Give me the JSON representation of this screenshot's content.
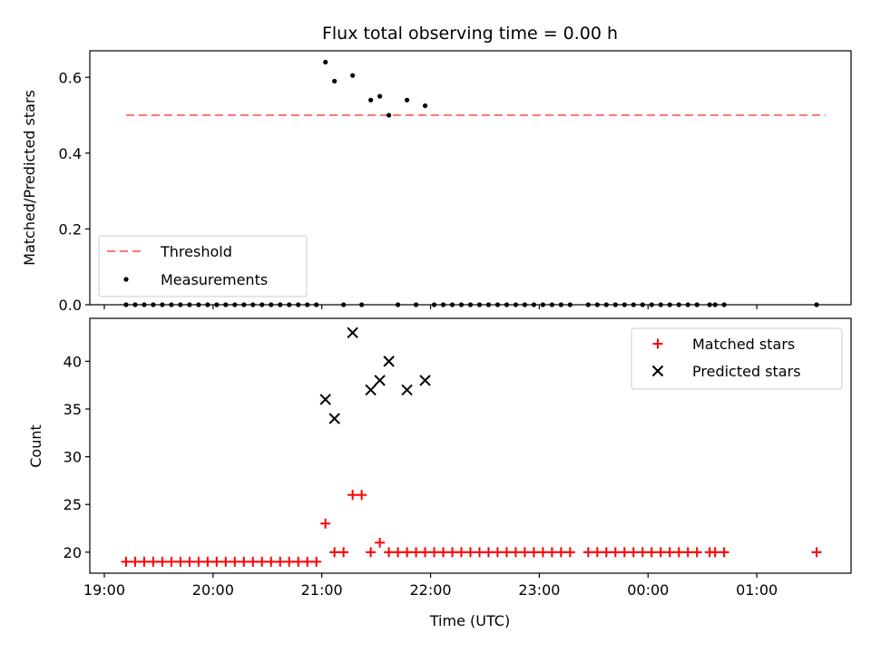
{
  "chart_data": [
    {
      "type": "scatter",
      "panel": "top",
      "title": "Flux total observing time = 0.00 h",
      "ylabel": "Matched/Predicted stars",
      "ylim": [
        0,
        0.67
      ],
      "yticks": [
        0.0,
        0.2,
        0.4,
        0.6
      ],
      "ytick_labels": [
        "0.0",
        "0.2",
        "0.4",
        "0.6"
      ],
      "grid": false,
      "legend_position": "lower-left",
      "threshold": {
        "name": "Threshold",
        "value": 0.5,
        "x_range": [
          "19:12",
          "01:38"
        ],
        "color": "#ff7777",
        "style": "dashed"
      },
      "series": [
        {
          "name": "Measurements",
          "color": "#000000",
          "x": [
            "19:12",
            "19:17",
            "19:22",
            "19:27",
            "19:32",
            "19:37",
            "19:42",
            "19:47",
            "19:52",
            "19:57",
            "20:02",
            "20:07",
            "20:12",
            "20:17",
            "20:22",
            "20:27",
            "20:32",
            "20:37",
            "20:42",
            "20:47",
            "20:52",
            "20:57",
            "21:02",
            "21:07",
            "21:12",
            "21:17",
            "21:22",
            "21:27",
            "21:32",
            "21:37",
            "21:42",
            "21:47",
            "21:52",
            "21:57",
            "22:02",
            "22:07",
            "22:12",
            "22:17",
            "22:22",
            "22:27",
            "22:32",
            "22:37",
            "22:42",
            "22:47",
            "22:52",
            "22:57",
            "23:02",
            "23:07",
            "23:12",
            "23:17",
            "23:27",
            "23:32",
            "23:37",
            "23:42",
            "23:47",
            "23:52",
            "23:57",
            "00:02",
            "00:07",
            "00:12",
            "00:17",
            "00:22",
            "00:27",
            "00:34",
            "00:37",
            "00:42",
            "01:33"
          ],
          "y": [
            0,
            0,
            0,
            0,
            0,
            0,
            0,
            0,
            0,
            0,
            0,
            0,
            0,
            0,
            0,
            0,
            0,
            0,
            0,
            0,
            0,
            0,
            0.64,
            0.59,
            0,
            0.605,
            0,
            0.54,
            0.55,
            0.5,
            0,
            0.54,
            0,
            0.525,
            0,
            0,
            0,
            0,
            0,
            0,
            0,
            0,
            0,
            0,
            0,
            0,
            0,
            0,
            0,
            0,
            0,
            0,
            0,
            0,
            0,
            0,
            0,
            0,
            0,
            0,
            0,
            0,
            0,
            0,
            0,
            0,
            0
          ]
        }
      ]
    },
    {
      "type": "scatter",
      "panel": "bottom",
      "xlabel": "Time (UTC)",
      "ylabel": "Count",
      "ylim": [
        17.8,
        44.5
      ],
      "yticks": [
        20,
        25,
        30,
        35,
        40
      ],
      "ytick_labels": [
        "20",
        "25",
        "30",
        "35",
        "40"
      ],
      "x_ticks": [
        "19:00",
        "20:00",
        "21:00",
        "22:00",
        "23:00",
        "00:00",
        "01:00"
      ],
      "xlim": [
        "18:52",
        "01:52"
      ],
      "grid": false,
      "legend_position": "upper-right",
      "series": [
        {
          "name": "Matched stars",
          "marker": "plus",
          "color": "#ff0000",
          "x": [
            "19:12",
            "19:17",
            "19:22",
            "19:27",
            "19:32",
            "19:37",
            "19:42",
            "19:47",
            "19:52",
            "19:57",
            "20:02",
            "20:07",
            "20:12",
            "20:17",
            "20:22",
            "20:27",
            "20:32",
            "20:37",
            "20:42",
            "20:47",
            "20:52",
            "20:57",
            "21:02",
            "21:07",
            "21:12",
            "21:17",
            "21:22",
            "21:27",
            "21:32",
            "21:37",
            "21:42",
            "21:47",
            "21:52",
            "21:57",
            "22:02",
            "22:07",
            "22:12",
            "22:17",
            "22:22",
            "22:27",
            "22:32",
            "22:37",
            "22:42",
            "22:47",
            "22:52",
            "22:57",
            "23:02",
            "23:07",
            "23:12",
            "23:17",
            "23:27",
            "23:32",
            "23:37",
            "23:42",
            "23:47",
            "23:52",
            "23:57",
            "00:02",
            "00:07",
            "00:12",
            "00:17",
            "00:22",
            "00:27",
            "00:34",
            "00:37",
            "00:42",
            "01:33"
          ],
          "y": [
            19,
            19,
            19,
            19,
            19,
            19,
            19,
            19,
            19,
            19,
            19,
            19,
            19,
            19,
            19,
            19,
            19,
            19,
            19,
            19,
            19,
            19,
            23,
            20,
            20,
            26,
            26,
            20,
            21,
            20,
            20,
            20,
            20,
            20,
            20,
            20,
            20,
            20,
            20,
            20,
            20,
            20,
            20,
            20,
            20,
            20,
            20,
            20,
            20,
            20,
            20,
            20,
            20,
            20,
            20,
            20,
            20,
            20,
            20,
            20,
            20,
            20,
            20,
            20,
            20,
            20,
            20
          ]
        },
        {
          "name": "Predicted stars",
          "marker": "x",
          "color": "#000000",
          "x": [
            "21:02",
            "21:07",
            "21:17",
            "21:27",
            "21:32",
            "21:37",
            "21:47",
            "21:57"
          ],
          "y": [
            36,
            34,
            43,
            37,
            38,
            40,
            37,
            38
          ]
        }
      ]
    }
  ]
}
